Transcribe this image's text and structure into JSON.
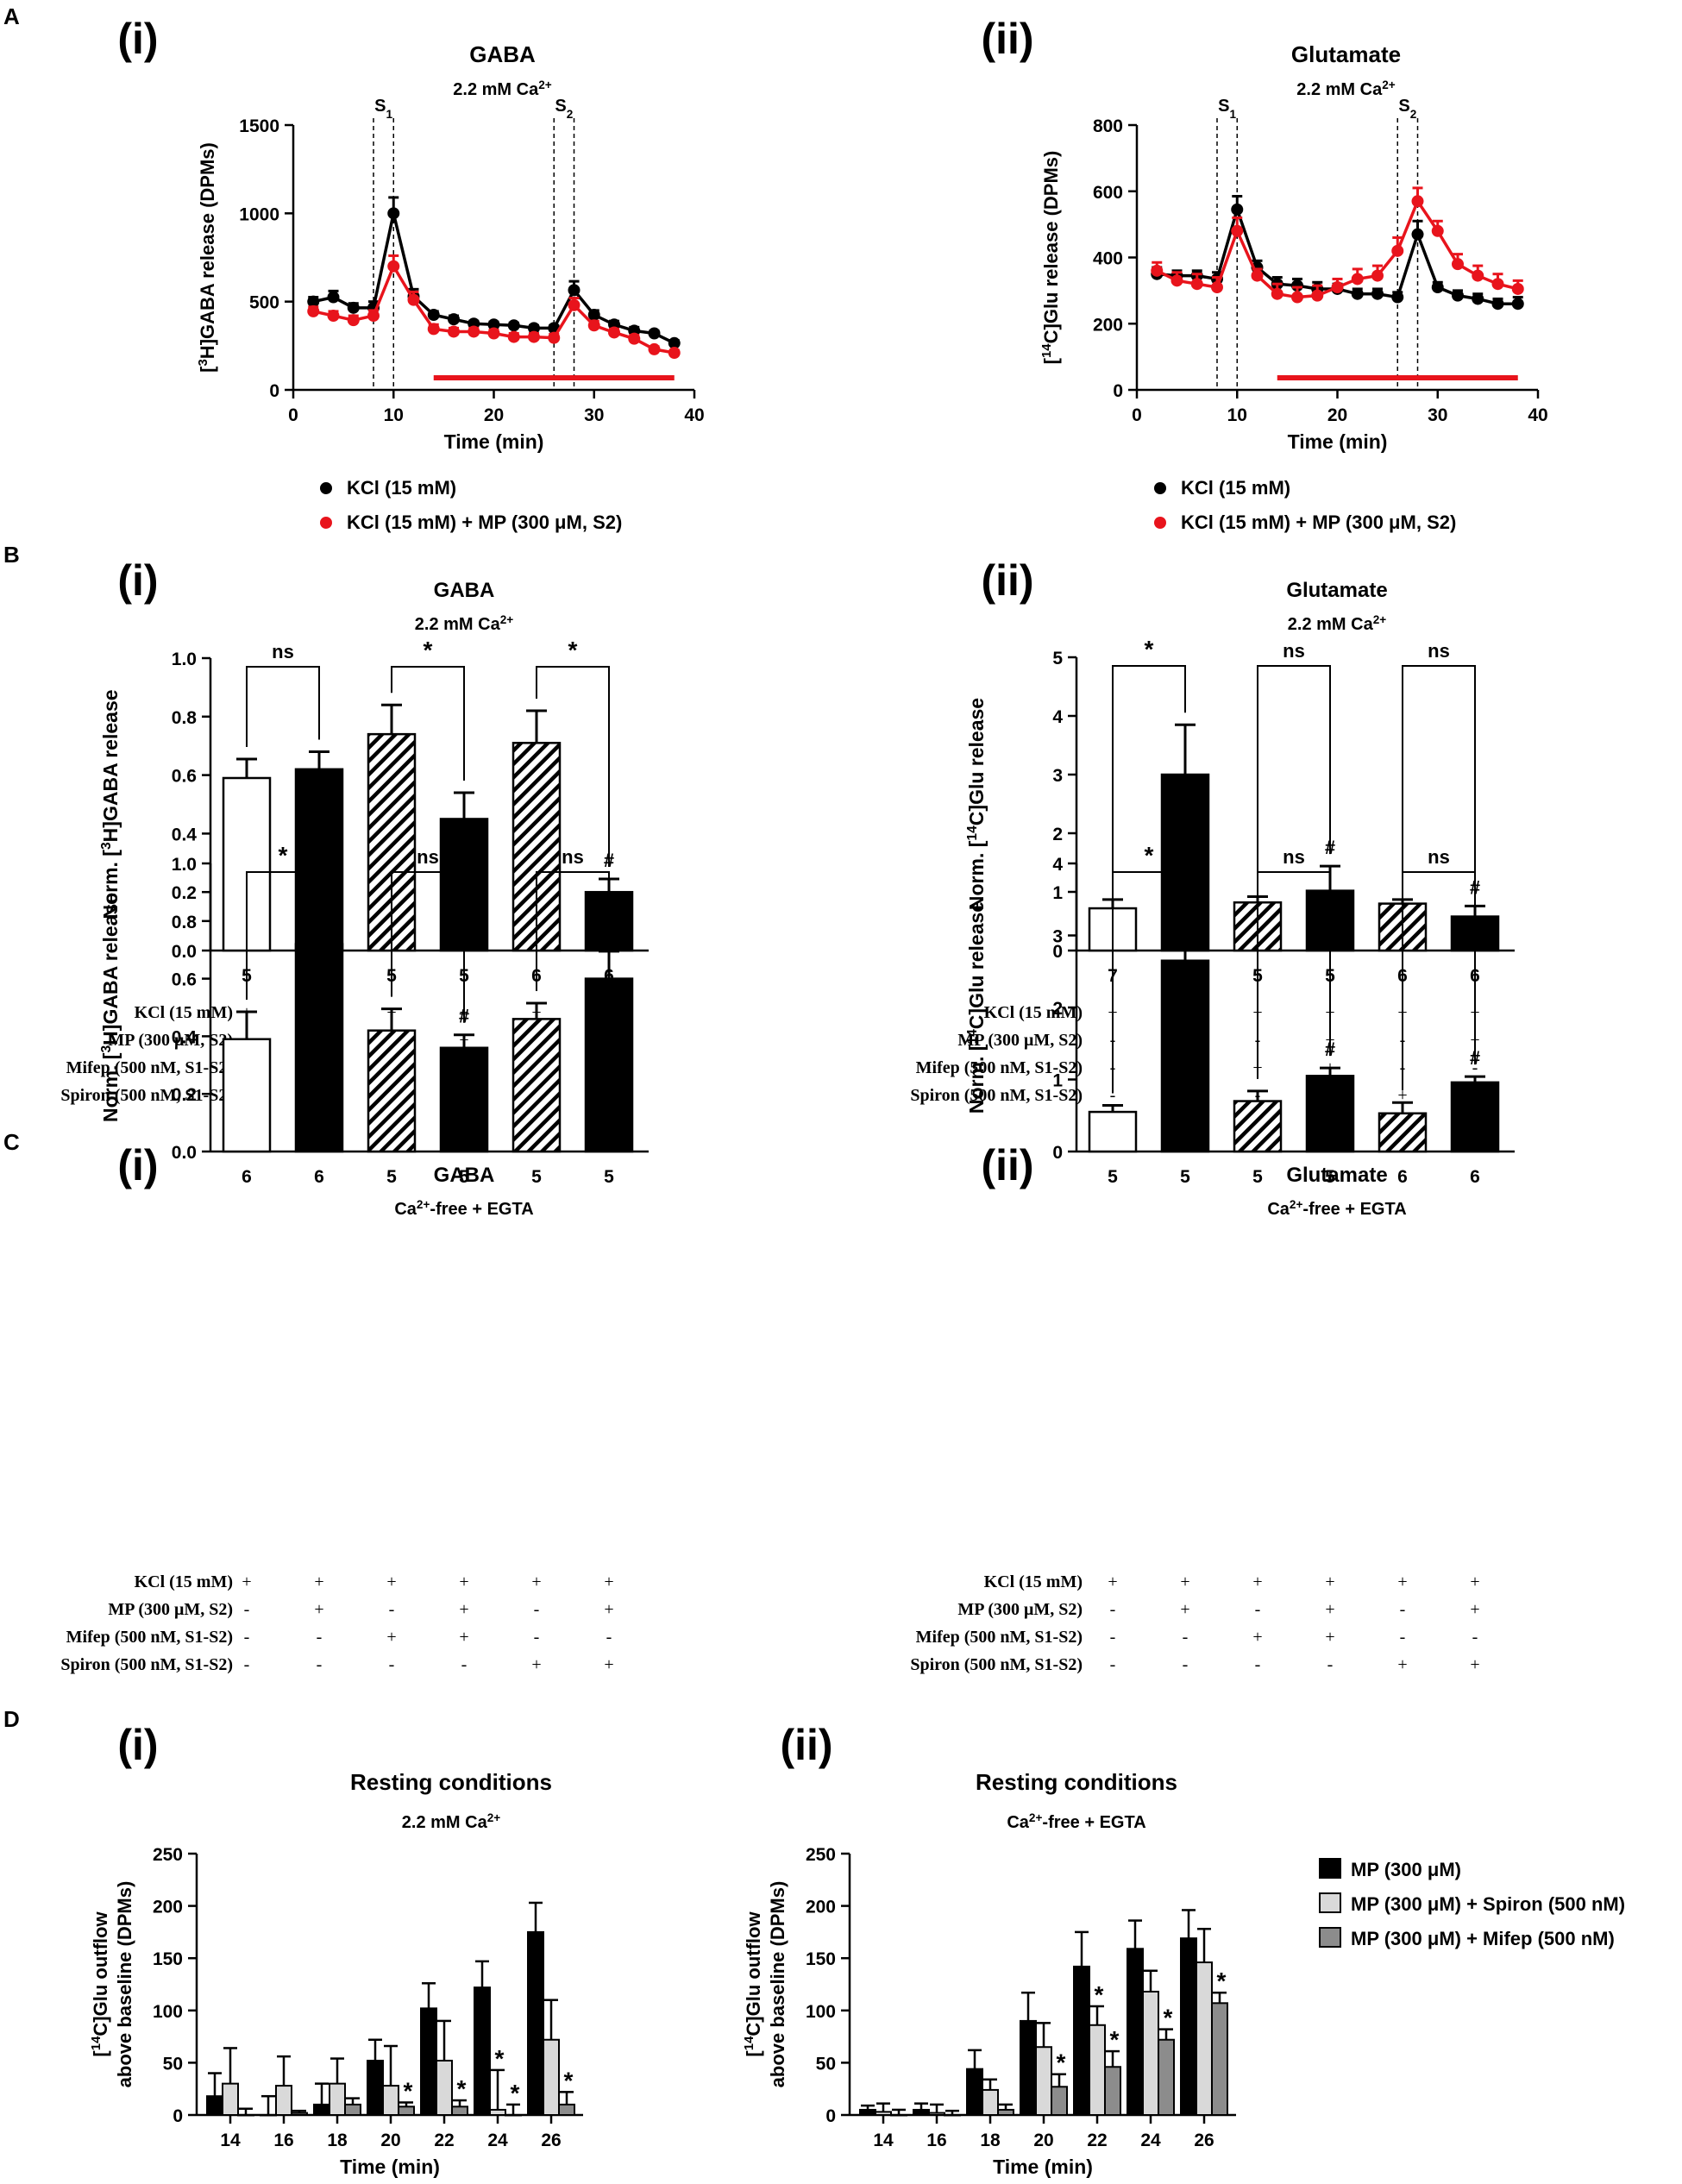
{
  "colors": {
    "black": "#000000",
    "red": "#e8141c",
    "light": "#d9d9d9",
    "dark": "#8c8c8c"
  },
  "panel_letters": [
    "A",
    "B",
    "C",
    "D"
  ],
  "chart_data": [
    {
      "id": "A-i",
      "type": "line",
      "label": "(i)",
      "title": "GABA",
      "subtitle": "2.2 mM Ca2+",
      "xlabel": "Time (min)",
      "ylabel": "[3H]GABA release (DPMs)",
      "xlim": [
        0,
        40
      ],
      "ylim": [
        0,
        1500
      ],
      "xticks": [
        0,
        10,
        20,
        30,
        40
      ],
      "yticks": [
        0,
        500,
        1000,
        1500
      ],
      "stim_labels": [
        "S1",
        "S2"
      ],
      "stim_ranges": [
        [
          8,
          10
        ],
        [
          26,
          28
        ]
      ],
      "drug_bar": [
        14,
        38
      ],
      "legend": [
        "KCl (15 mM)",
        "KCl (15 mM) + MP (300 μM, S2)"
      ],
      "series": [
        {
          "name": "KCl (15 mM)",
          "color": "black",
          "x": [
            2,
            4,
            6,
            8,
            10,
            12,
            14,
            16,
            18,
            20,
            22,
            24,
            26,
            28,
            30,
            32,
            34,
            36,
            38
          ],
          "y": [
            500,
            525,
            465,
            465,
            1000,
            530,
            425,
            400,
            375,
            370,
            365,
            350,
            350,
            565,
            425,
            370,
            335,
            320,
            265
          ],
          "err": [
            25,
            35,
            25,
            35,
            90,
            40,
            20,
            20,
            15,
            15,
            15,
            15,
            15,
            50,
            25,
            20,
            20,
            15,
            15
          ]
        },
        {
          "name": "KCl (15 mM) + MP (300 μM, S2)",
          "color": "red",
          "x": [
            2,
            4,
            6,
            8,
            10,
            12,
            14,
            16,
            18,
            20,
            22,
            24,
            26,
            28,
            30,
            32,
            34,
            36,
            38
          ],
          "y": [
            445,
            420,
            395,
            420,
            700,
            510,
            345,
            330,
            330,
            320,
            300,
            300,
            295,
            480,
            365,
            325,
            290,
            230,
            210
          ],
          "err": [
            25,
            25,
            25,
            30,
            60,
            45,
            25,
            20,
            20,
            20,
            20,
            20,
            20,
            40,
            25,
            20,
            20,
            15,
            15
          ]
        }
      ]
    },
    {
      "id": "A-ii",
      "type": "line",
      "label": "(ii)",
      "title": "Glutamate",
      "subtitle": "2.2 mM Ca2+",
      "xlabel": "Time (min)",
      "ylabel": "[14C]Glu release (DPMs)",
      "xlim": [
        0,
        40
      ],
      "ylim": [
        0,
        800
      ],
      "xticks": [
        0,
        10,
        20,
        30,
        40
      ],
      "yticks": [
        0,
        200,
        400,
        600,
        800
      ],
      "stim_labels": [
        "S1",
        "S2"
      ],
      "stim_ranges": [
        [
          8,
          10
        ],
        [
          26,
          28
        ]
      ],
      "drug_bar": [
        14,
        38
      ],
      "legend": [
        "KCl (15 mM)",
        "KCl (15 mM) + MP (300 μM, S2)"
      ],
      "series": [
        {
          "name": "KCl (15 mM)",
          "color": "black",
          "x": [
            2,
            4,
            6,
            8,
            10,
            12,
            14,
            16,
            18,
            20,
            22,
            24,
            26,
            28,
            30,
            32,
            34,
            36,
            38
          ],
          "y": [
            350,
            345,
            345,
            335,
            545,
            370,
            320,
            315,
            305,
            305,
            290,
            290,
            280,
            470,
            310,
            285,
            275,
            260,
            260
          ],
          "err": [
            20,
            15,
            15,
            20,
            40,
            20,
            20,
            20,
            20,
            15,
            15,
            15,
            15,
            40,
            15,
            15,
            15,
            15,
            20
          ]
        },
        {
          "name": "KCl (15 mM) + MP (300 μM, S2)",
          "color": "red",
          "x": [
            2,
            4,
            6,
            8,
            10,
            12,
            14,
            16,
            18,
            20,
            22,
            24,
            26,
            28,
            30,
            32,
            34,
            36,
            38
          ],
          "y": [
            360,
            330,
            320,
            310,
            480,
            345,
            290,
            280,
            285,
            310,
            335,
            345,
            420,
            570,
            480,
            380,
            345,
            320,
            305
          ],
          "err": [
            25,
            25,
            30,
            30,
            40,
            20,
            30,
            30,
            30,
            25,
            30,
            30,
            40,
            40,
            30,
            30,
            30,
            30,
            25
          ]
        }
      ]
    },
    {
      "id": "B-i",
      "type": "bar",
      "label": "(i)",
      "title": "GABA",
      "subtitle": "2.2 mM Ca2+",
      "ylabel": "Norm. [3H]GABA release",
      "ylim": [
        0,
        1
      ],
      "yticks": [
        "0.0",
        "0.2",
        "0.4",
        "0.6",
        "0.8",
        "1.0"
      ],
      "values": [
        0.59,
        0.62,
        0.74,
        0.45,
        0.71,
        0.2
      ],
      "err": [
        0.065,
        0.06,
        0.1,
        0.09,
        0.11,
        0.045
      ],
      "patterns": [
        "open",
        "solid",
        "hatch",
        "solid",
        "hatch",
        "solid"
      ],
      "n": [
        "5",
        "5",
        "5",
        "5",
        "6",
        "6"
      ],
      "sig": [
        {
          "a": 0,
          "b": 1,
          "label": "ns"
        },
        {
          "a": 2,
          "b": 3,
          "label": "*"
        },
        {
          "a": 4,
          "b": 5,
          "label": "*"
        }
      ],
      "hash": [
        5
      ],
      "conditions": [
        {
          "label": "KCl (15 mM)",
          "marks": [
            "+",
            "+",
            "+",
            "+",
            "+",
            "+"
          ]
        },
        {
          "label": "MP (300 μM, S2)",
          "marks": [
            "-",
            "+",
            "-",
            "+",
            "-",
            "+"
          ]
        },
        {
          "label": "Mifep (500 nM, S1-S2)",
          "marks": [
            "-",
            "-",
            "+",
            "+",
            "-",
            "-"
          ]
        },
        {
          "label": "Spiron (500 nM, S1-S2)",
          "marks": [
            "-",
            "-",
            "-",
            "-",
            "+",
            "+"
          ]
        }
      ]
    },
    {
      "id": "B-ii",
      "type": "bar",
      "label": "(ii)",
      "title": "Glutamate",
      "subtitle": "2.2 mM Ca2+",
      "ylabel": "Norm. [14C]Glu release",
      "ylim": [
        0,
        5
      ],
      "yticks": [
        "0",
        "1",
        "2",
        "3",
        "4",
        "5"
      ],
      "values": [
        0.72,
        3.0,
        0.82,
        1.02,
        0.8,
        0.58
      ],
      "err": [
        0.15,
        0.85,
        0.1,
        0.42,
        0.07,
        0.18
      ],
      "patterns": [
        "open",
        "solid",
        "hatch",
        "solid",
        "hatch",
        "solid"
      ],
      "n": [
        "7",
        "7",
        "5",
        "5",
        "6",
        "6"
      ],
      "sig": [
        {
          "a": 0,
          "b": 1,
          "label": "*"
        },
        {
          "a": 2,
          "b": 3,
          "label": "ns"
        },
        {
          "a": 4,
          "b": 5,
          "label": "ns"
        }
      ],
      "hash": [
        3,
        5
      ],
      "conditions": [
        {
          "label": "KCl (15 mM)",
          "marks": [
            "+",
            "+",
            "+",
            "+",
            "+",
            "+"
          ]
        },
        {
          "label": "MP (300 μM, S2)",
          "marks": [
            "-",
            "+",
            "-",
            "+",
            "-",
            "+"
          ]
        },
        {
          "label": "Mifep (500 nM, S1-S2)",
          "marks": [
            "-",
            "-",
            "+",
            "+",
            "-",
            "-"
          ]
        },
        {
          "label": "Spiron (500 nM, S1-S2)",
          "marks": [
            "-",
            "-",
            "-",
            "-",
            "+",
            "+"
          ]
        }
      ]
    },
    {
      "id": "C-i",
      "type": "bar",
      "label": "(i)",
      "title": "GABA",
      "subtitle": "Ca2+-free + EGTA",
      "ylabel": "Norm. [3H]GABA release",
      "ylim": [
        0,
        1
      ],
      "yticks": [
        "0.0",
        "0.2",
        "0.4",
        "0.6",
        "0.8",
        "1.0"
      ],
      "values": [
        0.39,
        0.72,
        0.42,
        0.36,
        0.46,
        0.6
      ],
      "err": [
        0.095,
        0.065,
        0.075,
        0.045,
        0.055,
        0.095
      ],
      "patterns": [
        "open",
        "solid",
        "hatch",
        "solid",
        "hatch",
        "solid"
      ],
      "n": [
        "6",
        "6",
        "5",
        "5",
        "5",
        "5"
      ],
      "sig": [
        {
          "a": 0,
          "b": 1,
          "label": "*"
        },
        {
          "a": 2,
          "b": 3,
          "label": "ns"
        },
        {
          "a": 4,
          "b": 5,
          "label": "ns"
        }
      ],
      "hash": [
        3
      ],
      "conditions": [
        {
          "label": "KCl (15 mM)",
          "marks": [
            "+",
            "+",
            "+",
            "+",
            "+",
            "+"
          ]
        },
        {
          "label": "MP (300 μM, S2)",
          "marks": [
            "-",
            "+",
            "-",
            "+",
            "-",
            "+"
          ]
        },
        {
          "label": "Mifep (500 nM, S1-S2)",
          "marks": [
            "-",
            "-",
            "+",
            "+",
            "-",
            "-"
          ]
        },
        {
          "label": "Spiron (500 nM, S1-S2)",
          "marks": [
            "-",
            "-",
            "-",
            "-",
            "+",
            "+"
          ]
        }
      ]
    },
    {
      "id": "C-ii",
      "type": "bar",
      "label": "(ii)",
      "title": "Glutamate",
      "subtitle": "Ca2+-free + EGTA",
      "ylabel": "Norm. [14C]Glu release",
      "ylim": [
        0,
        4
      ],
      "yticks": [
        "0",
        "1",
        "2",
        "3",
        "4"
      ],
      "values": [
        0.55,
        2.65,
        0.7,
        1.05,
        0.53,
        0.96
      ],
      "err": [
        0.09,
        0.55,
        0.14,
        0.11,
        0.15,
        0.08
      ],
      "patterns": [
        "open",
        "solid",
        "hatch",
        "solid",
        "hatch",
        "solid"
      ],
      "n": [
        "5",
        "5",
        "5",
        "5",
        "6",
        "6"
      ],
      "sig": [
        {
          "a": 0,
          "b": 1,
          "label": "*"
        },
        {
          "a": 2,
          "b": 3,
          "label": "ns"
        },
        {
          "a": 4,
          "b": 5,
          "label": "ns"
        }
      ],
      "hash": [
        3,
        5
      ],
      "conditions": [
        {
          "label": "KCl (15 mM)",
          "marks": [
            "+",
            "+",
            "+",
            "+",
            "+",
            "+"
          ]
        },
        {
          "label": "MP (300 μM, S2)",
          "marks": [
            "-",
            "+",
            "-",
            "+",
            "-",
            "+"
          ]
        },
        {
          "label": "Mifep (500 nM, S1-S2)",
          "marks": [
            "-",
            "-",
            "+",
            "+",
            "-",
            "-"
          ]
        },
        {
          "label": "Spiron (500 nM, S1-S2)",
          "marks": [
            "-",
            "-",
            "-",
            "-",
            "+",
            "+"
          ]
        }
      ]
    },
    {
      "id": "D-i",
      "type": "bar",
      "label": "(i)",
      "title": "Resting conditions",
      "subtitle": "2.2 mM Ca2+",
      "xlabel": "Time (min)",
      "ylabel": "[14C]Glu outflow above baseline (DPMs)",
      "ylim": [
        0,
        250
      ],
      "yticks": [
        0,
        50,
        100,
        150,
        200,
        250
      ],
      "categories": [
        "14",
        "16",
        "18",
        "20",
        "22",
        "24",
        "26"
      ],
      "series": [
        {
          "name": "MP (300 μM)",
          "color": "black",
          "values": [
            18,
            0,
            10,
            52,
            102,
            122,
            175
          ],
          "err": [
            22,
            18,
            20,
            20,
            24,
            25,
            28
          ]
        },
        {
          "name": "MP (300 μM) + Spiron (500 nM)",
          "color": "light",
          "values": [
            30,
            28,
            30,
            28,
            52,
            5,
            72
          ],
          "err": [
            34,
            28,
            24,
            38,
            38,
            38,
            38
          ]
        },
        {
          "name": "MP (300 μM) + Mifep (500 nM)",
          "color": "dark",
          "values": [
            0,
            2,
            10,
            8,
            8,
            0,
            10
          ],
          "err": [
            6,
            2,
            6,
            4,
            6,
            10,
            12
          ]
        }
      ],
      "stars": [
        [
          3,
          2
        ],
        [
          4,
          2
        ],
        [
          5,
          1
        ],
        [
          5,
          2
        ],
        [
          6,
          2
        ]
      ]
    },
    {
      "id": "D-ii",
      "type": "bar",
      "label": "(ii)",
      "title": "Resting conditions",
      "subtitle": "Ca2+-free + EGTA",
      "xlabel": "Time (min)",
      "ylabel": "[14C]Glu outflow above baseline (DPMs)",
      "ylim": [
        0,
        250
      ],
      "yticks": [
        0,
        50,
        100,
        150,
        200,
        250
      ],
      "categories": [
        "14",
        "16",
        "18",
        "20",
        "22",
        "24",
        "26"
      ],
      "series": [
        {
          "name": "MP (300 μM)",
          "color": "black",
          "values": [
            5,
            5,
            44,
            90,
            142,
            159,
            169
          ],
          "err": [
            4,
            6,
            18,
            27,
            33,
            27,
            27
          ]
        },
        {
          "name": "MP (300 μM) + Spiron (500 nM)",
          "color": "light",
          "values": [
            3,
            2,
            24,
            65,
            86,
            118,
            146
          ],
          "err": [
            8,
            8,
            10,
            23,
            18,
            20,
            32
          ]
        },
        {
          "name": "MP (300 μM) + Mifep (500 nM)",
          "color": "dark",
          "values": [
            0,
            0,
            5,
            27,
            46,
            72,
            107
          ],
          "err": [
            5,
            4,
            5,
            12,
            15,
            10,
            10
          ]
        }
      ],
      "stars": [
        [
          3,
          2
        ],
        [
          4,
          1
        ],
        [
          4,
          2
        ],
        [
          5,
          2
        ],
        [
          6,
          2
        ]
      ],
      "legend": [
        "MP (300 μM)",
        "MP (300 μM) + Spiron (500 nM)",
        "MP (300 μM) + Mifep (500 nM)"
      ]
    }
  ]
}
